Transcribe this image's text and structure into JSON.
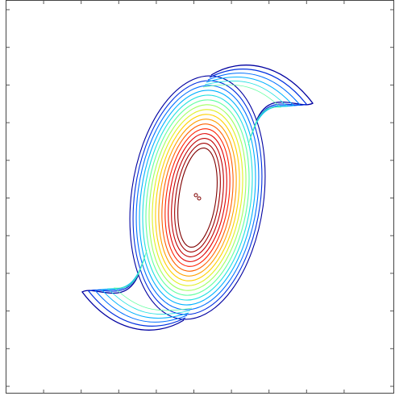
{
  "chart_data": {
    "type": "contour",
    "colors": [
      "#7f0000",
      "#a00000",
      "#c00000",
      "#e00000",
      "#ff2000",
      "#ff6000",
      "#ffa000",
      "#ffd000",
      "#e0f020",
      "#a0ff60",
      "#60ffa0",
      "#20e0e0",
      "#00b0ff",
      "#0070ff",
      "#0030e0",
      "#0000a0"
    ]
  }
}
